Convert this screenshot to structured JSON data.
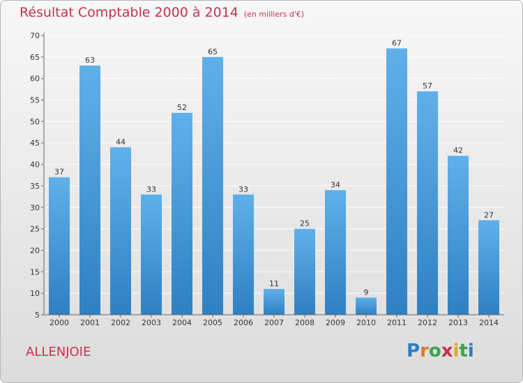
{
  "title": "Résultat Comptable 2000 à 2014",
  "subtitle": "(en milliers d'€)",
  "commune": "ALLENJOIE",
  "logo": {
    "letters": [
      "P",
      "r",
      "o",
      "x",
      "i",
      "t",
      "i"
    ],
    "colors": [
      "#2a7fc4",
      "#e07a1f",
      "#3aa54a",
      "#c9304f",
      "#e0a81f",
      "#3aa54a",
      "#2a7fc4"
    ]
  },
  "colors": {
    "bar_top": "#5fb0ea",
    "bar_bottom": "#2f80c2",
    "title": "#c9304f"
  },
  "chart_data": {
    "type": "bar",
    "categories": [
      "2000",
      "2001",
      "2002",
      "2003",
      "2004",
      "2005",
      "2006",
      "2007",
      "2008",
      "2009",
      "2010",
      "2011",
      "2012",
      "2013",
      "2014"
    ],
    "values": [
      37,
      63,
      44,
      33,
      52,
      65,
      33,
      11,
      25,
      34,
      9,
      67,
      57,
      42,
      27
    ],
    "ylim": [
      5,
      70
    ],
    "yticks": [
      5,
      10,
      15,
      20,
      25,
      30,
      35,
      40,
      45,
      50,
      55,
      60,
      65,
      70
    ],
    "grid": true
  }
}
